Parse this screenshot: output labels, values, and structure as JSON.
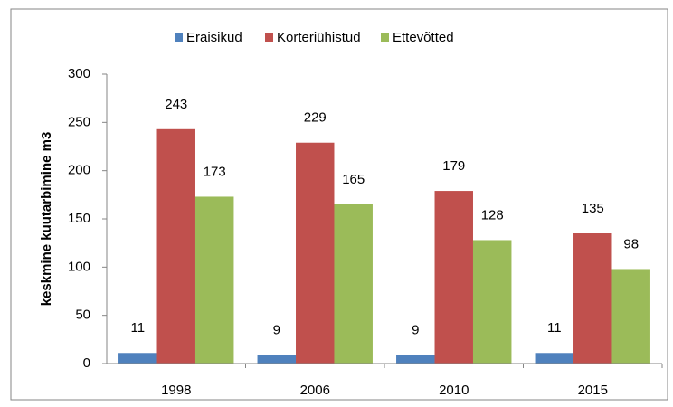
{
  "chart_data": {
    "type": "bar",
    "ylabel": "keskmine kuutarbimine m3",
    "categories": [
      "1998",
      "2006",
      "2010",
      "2015"
    ],
    "series": [
      {
        "name": "Eraisikud",
        "color": "#4f81bd",
        "values": [
          11,
          9,
          9,
          11
        ]
      },
      {
        "name": "Korteriühistud",
        "color": "#c0504d",
        "values": [
          243,
          229,
          179,
          135
        ]
      },
      {
        "name": "Ettevõtted",
        "color": "#9bbb59",
        "values": [
          173,
          165,
          128,
          98
        ]
      }
    ],
    "ylim": [
      0,
      300
    ],
    "yticks": [
      0,
      50,
      100,
      150,
      200,
      250,
      300
    ],
    "grid": false,
    "legend": "top"
  }
}
